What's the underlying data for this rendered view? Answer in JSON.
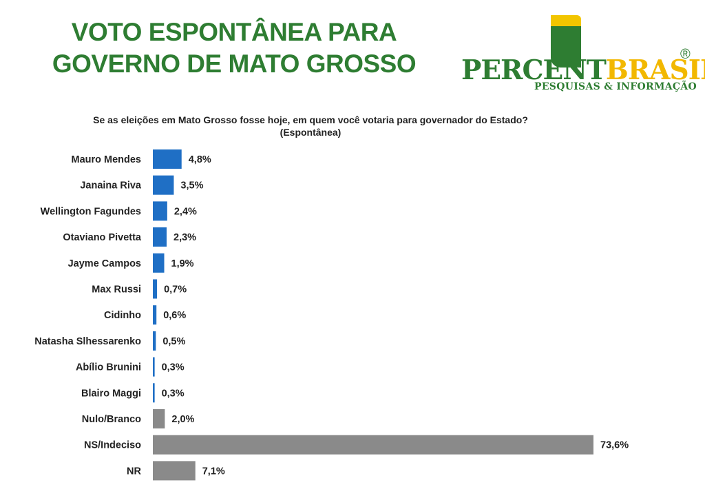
{
  "title_lines": [
    "VOTO ESPONTÂNEA PARA",
    "GOVERNO DE MATO GROSSO"
  ],
  "logo": {
    "word_part1": "PERCENT",
    "word_part2": "BRASIL",
    "registered": "®",
    "tagline": "PESQUISAS & INFORMAÇÃO"
  },
  "question": {
    "line1": "Se as eleições em Mato Grosso fosse hoje, em quem você votaria para governador do Estado?",
    "line2": "(Espontânea)"
  },
  "colors": {
    "title": "#2e7d32",
    "candidate_bar": "#1f6fc5",
    "other_bar": "#8a8a8a",
    "logo_green": "#2e7d32",
    "logo_yellow": "#f2b800"
  },
  "chart_data": {
    "type": "bar",
    "orientation": "horizontal",
    "categories": [
      "Mauro Mendes",
      "Janaina Riva",
      "Wellington Fagundes",
      "Otaviano Pivetta",
      "Jayme Campos",
      "Max Russi",
      "Cidinho",
      "Natasha Slhessarenko",
      "Abílio Brunini",
      "Blairo Maggi",
      "Nulo/Branco",
      "NS/Indeciso",
      "NR"
    ],
    "values": [
      4.8,
      3.5,
      2.4,
      2.3,
      1.9,
      0.7,
      0.6,
      0.5,
      0.3,
      0.3,
      2.0,
      73.6,
      7.1
    ],
    "value_labels": [
      "4,8%",
      "3,5%",
      "2,4%",
      "2,3%",
      "1,9%",
      "0,7%",
      "0,6%",
      "0,5%",
      "0,3%",
      "0,3%",
      "2,0%",
      "73,6%",
      "7,1%"
    ],
    "bar_groups": [
      "candidate",
      "candidate",
      "candidate",
      "candidate",
      "candidate",
      "candidate",
      "candidate",
      "candidate",
      "candidate",
      "candidate",
      "other",
      "other",
      "other"
    ],
    "xlim": [
      0,
      73.6
    ],
    "grid": false,
    "legend": "none"
  }
}
